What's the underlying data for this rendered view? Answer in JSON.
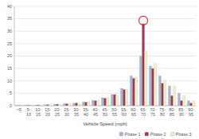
{
  "chart_data": {
    "type": "bar",
    "x_label": "Vehicle Speed (mph)",
    "categories": [
      "<5",
      "5-10",
      "10-15",
      "15-20",
      "20-25",
      "25-30",
      "30-35",
      "35-40",
      "40-45",
      "45-50",
      "50-55",
      "55-60",
      "60-65",
      "65-70",
      "70-75",
      "75-80",
      "80-85",
      "85-90",
      "90-95"
    ],
    "series": [
      {
        "name": "Phase 1",
        "color": "#9fb6d8",
        "values": [
          0.1,
          0.2,
          0.3,
          0.4,
          0.6,
          0.8,
          1.0,
          1.5,
          2.2,
          3.2,
          4.5,
          7,
          12,
          20,
          16,
          12,
          8,
          5,
          2
        ]
      },
      {
        "name": "Phase 2",
        "color": "#a3354c",
        "values": [
          0.1,
          0.2,
          0.3,
          0.4,
          0.6,
          0.8,
          1.0,
          1.4,
          2.0,
          3.0,
          4.5,
          6.5,
          11,
          33,
          15,
          9,
          4,
          2,
          1
        ]
      },
      {
        "name": "Phase 3",
        "color": "#f4eecb",
        "values": [
          0.1,
          0.2,
          0.3,
          0.4,
          0.6,
          0.8,
          1.0,
          1.4,
          2.1,
          3.0,
          4.2,
          6.5,
          11.5,
          22,
          17,
          10,
          8,
          4,
          2
        ]
      }
    ],
    "ylim": [
      0,
      40
    ],
    "yticks": [
      0,
      5,
      10,
      15,
      20,
      25,
      30,
      35,
      40
    ],
    "grid": true,
    "legend": "bottom-right"
  }
}
